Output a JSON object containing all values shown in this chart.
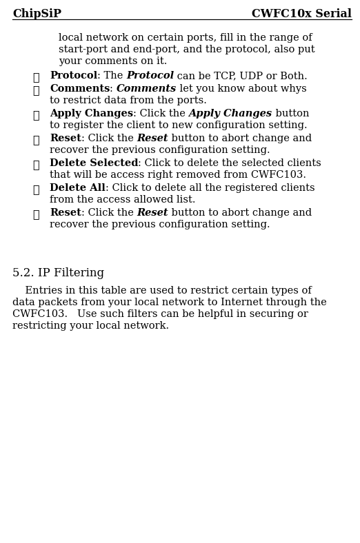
{
  "bg_color": "#ffffff",
  "header_left": "ChipSiP",
  "header_right": "CWFC10x Serial",
  "intro_lines": [
    "local network on certain ports, fill in the range of",
    "start-port and end-port, and the protocol, also put",
    "your comments on it."
  ],
  "bullet_items": [
    {
      "segments": [
        {
          "text": "Protocol",
          "bold": true,
          "italic": false
        },
        {
          "text": ": The ",
          "bold": false,
          "italic": false
        },
        {
          "text": "Protocol",
          "bold": true,
          "italic": true
        },
        {
          "text": " can be TCP, UDP or Both.",
          "bold": false,
          "italic": false
        }
      ],
      "continuation": null
    },
    {
      "segments": [
        {
          "text": "Comments",
          "bold": true,
          "italic": false
        },
        {
          "text": ": ",
          "bold": false,
          "italic": false
        },
        {
          "text": "Comments",
          "bold": true,
          "italic": true
        },
        {
          "text": " let you know about whys",
          "bold": false,
          "italic": false
        }
      ],
      "continuation": "to restrict data from the ports."
    },
    {
      "segments": [
        {
          "text": "Apply Changes",
          "bold": true,
          "italic": false
        },
        {
          "text": ": Click the ",
          "bold": false,
          "italic": false
        },
        {
          "text": "Apply Changes",
          "bold": true,
          "italic": true
        },
        {
          "text": " button",
          "bold": false,
          "italic": false
        }
      ],
      "continuation": "to register the client to new configuration setting."
    },
    {
      "segments": [
        {
          "text": "Reset",
          "bold": true,
          "italic": false
        },
        {
          "text": ": Click the ",
          "bold": false,
          "italic": false
        },
        {
          "text": "Reset",
          "bold": true,
          "italic": true
        },
        {
          "text": " button to abort change and",
          "bold": false,
          "italic": false
        }
      ],
      "continuation": "recover the previous configuration setting."
    },
    {
      "segments": [
        {
          "text": "Delete Selected",
          "bold": true,
          "italic": false
        },
        {
          "text": ": Click to delete the selected clients",
          "bold": false,
          "italic": false
        }
      ],
      "continuation": "that will be access right removed from CWFC103."
    },
    {
      "segments": [
        {
          "text": "Delete All",
          "bold": true,
          "italic": false
        },
        {
          "text": ": Click to delete all the registered clients",
          "bold": false,
          "italic": false
        }
      ],
      "continuation": "from the access allowed list."
    },
    {
      "segments": [
        {
          "text": "Reset",
          "bold": true,
          "italic": false
        },
        {
          "text": ": Click the ",
          "bold": false,
          "italic": false
        },
        {
          "text": "Reset",
          "bold": true,
          "italic": true
        },
        {
          "text": " button to abort change and",
          "bold": false,
          "italic": false
        }
      ],
      "continuation": "recover the previous configuration setting."
    }
  ],
  "section_title": "5.2. IP Filtering",
  "para_lines": [
    "    Entries in this table are used to restrict certain types of",
    "data packets from your local network to Internet through the",
    "CWFC103.   Use such filters can be helpful in securing or",
    "restricting your local network."
  ],
  "font_size": 10.5,
  "header_font_size": 11.5,
  "section_font_size": 12.0
}
